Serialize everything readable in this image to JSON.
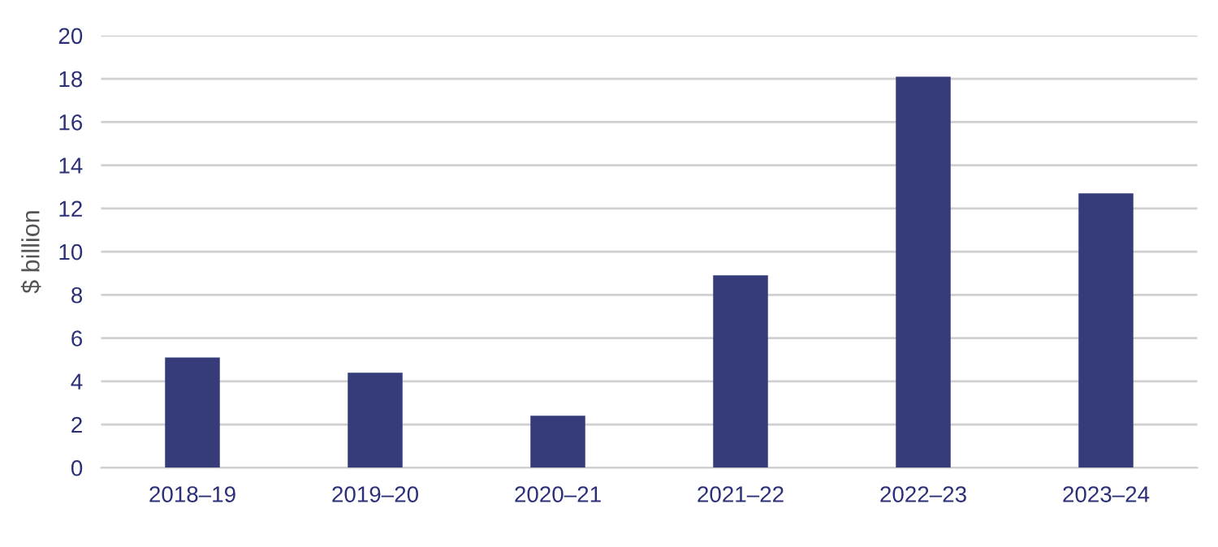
{
  "chart_data": {
    "type": "bar",
    "ylabel": "$ billion",
    "categories": [
      "2018–19",
      "2019–20",
      "2020–21",
      "2021–22",
      "2022–23",
      "2023–24"
    ],
    "series": [
      {
        "color": "#353c79",
        "values": [
          5.1,
          4.4,
          2.4,
          8.9,
          18.1,
          12.7
        ]
      }
    ],
    "ylim": [
      0,
      20
    ],
    "yticks": [
      0,
      2,
      4,
      6,
      8,
      10,
      12,
      14,
      16,
      18,
      20
    ],
    "grid": "y"
  }
}
